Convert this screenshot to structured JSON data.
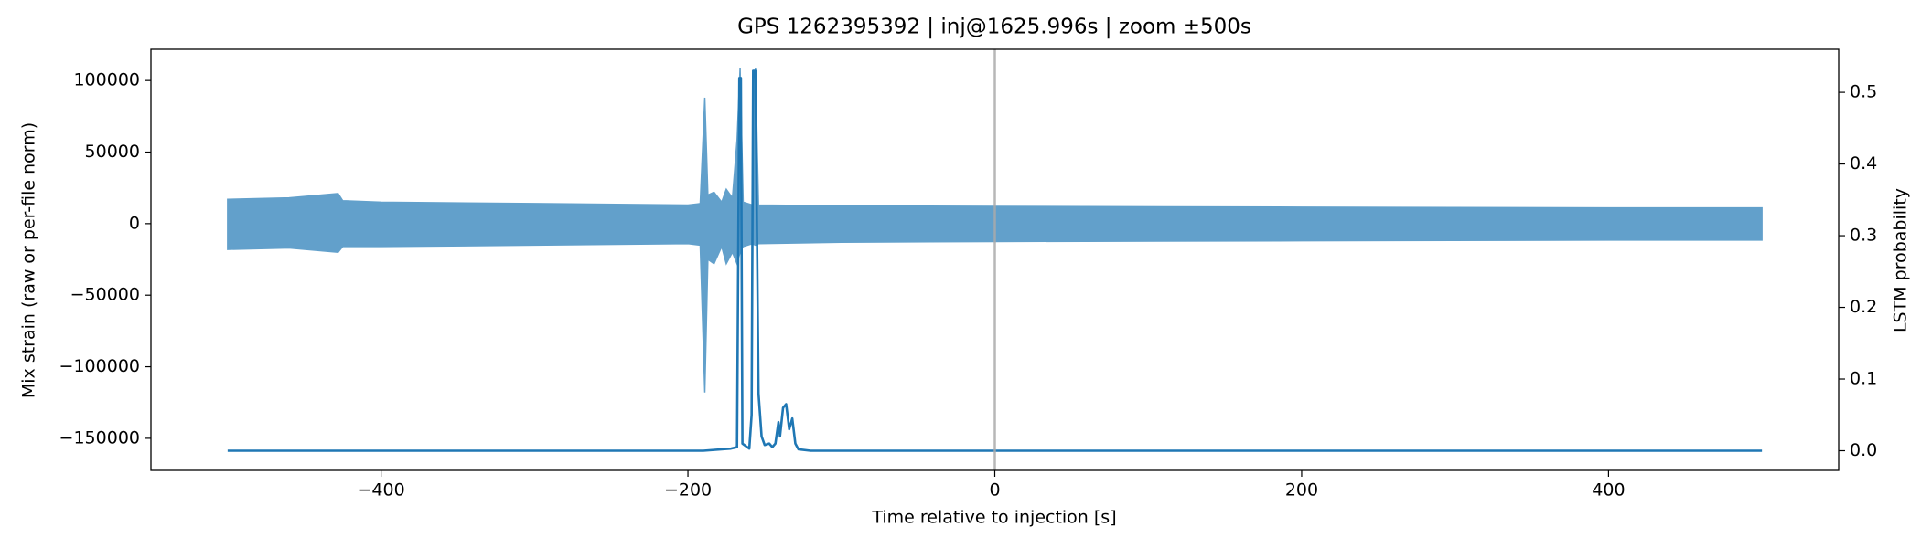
{
  "chart_data": {
    "type": "line",
    "title": "GPS 1262395392 | inj@1625.996s | zoom ±500s",
    "xlabel": "Time relative to injection [s]",
    "ylabel": "Mix strain (raw or per-file norm)",
    "y2label": "LSTM probability",
    "xlim": [
      -550,
      550
    ],
    "ylim": [
      -172400,
      121800
    ],
    "y2lim": [
      -0.0274,
      0.56
    ],
    "xticks": [
      {
        "value": -400,
        "label": "−400"
      },
      {
        "value": -200,
        "label": "−200"
      },
      0,
      200,
      400
    ],
    "yticks": [
      {
        "value": -150000,
        "label": "−150000"
      },
      {
        "value": -100000,
        "label": "−100000"
      },
      {
        "value": -50000,
        "label": "−50000"
      },
      0,
      50000,
      100000
    ],
    "y2ticks": [
      {
        "value": 0,
        "label": "0.0"
      },
      0.1,
      0.2,
      0.3,
      0.4,
      0.5
    ],
    "vlines": [
      0
    ],
    "vline_color": "#aaaaaa",
    "series": [
      {
        "type": "band",
        "color": "#62a0cb",
        "x": [
          -500,
          -460,
          -428,
          -425,
          -400,
          -300,
          -200,
          -192,
          -189,
          -187,
          -183,
          -178,
          -175,
          -171,
          -168,
          -166,
          -164,
          -158,
          -156,
          -154,
          -100,
          0,
          200,
          400,
          500
        ],
        "upper": [
          17000,
          18000,
          21000,
          16000,
          15000,
          14000,
          13000,
          14000,
          88000,
          20000,
          22000,
          15000,
          24000,
          18000,
          58000,
          109000,
          15000,
          13000,
          109000,
          13000,
          12500,
          12000,
          11500,
          11000,
          11000
        ],
        "lower": [
          -18000,
          -17000,
          -20000,
          -16000,
          -16000,
          -15000,
          -14000,
          -15000,
          -118000,
          -25000,
          -28000,
          -16000,
          -28000,
          -20000,
          -28000,
          -20000,
          -16000,
          -14000,
          -15000,
          -14000,
          -13000,
          -12500,
          -12000,
          -11500,
          -11500
        ]
      },
      {
        "type": "line",
        "axis": "y2",
        "color": "#1f77b4",
        "x": [
          -500,
          -300,
          -190,
          -172,
          -168,
          -166.5,
          -165.5,
          -164.5,
          -160,
          -158.5,
          -157.5,
          -156,
          -155,
          -154,
          -152,
          -150,
          -147,
          -145,
          -143,
          -141,
          -140,
          -138,
          -136,
          -134,
          -132,
          -130,
          -128,
          -120,
          500
        ],
        "values": [
          0,
          0,
          0,
          0.003,
          0.005,
          0.52,
          0.52,
          0.01,
          0.003,
          0.05,
          0.53,
          0.53,
          0.3,
          0.08,
          0.02,
          0.008,
          0.01,
          0.005,
          0.01,
          0.04,
          0.02,
          0.06,
          0.065,
          0.03,
          0.045,
          0.01,
          0.002,
          0,
          0
        ]
      }
    ]
  }
}
